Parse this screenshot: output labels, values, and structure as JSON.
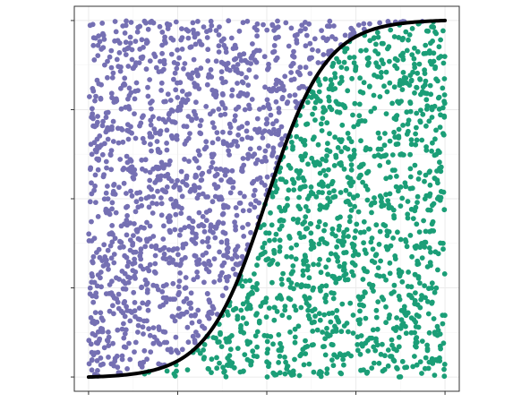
{
  "chart_data": {
    "type": "scatter",
    "title": "",
    "xlabel": "",
    "ylabel": "",
    "xlim": [
      -0.04,
      1.04
    ],
    "ylim": [
      -0.04,
      1.04
    ],
    "x_ticks": [
      0,
      0.25,
      0.5,
      0.75,
      1
    ],
    "y_ticks": [
      0,
      0.25,
      0.5,
      0.75,
      1
    ],
    "tick_labels_shown": false,
    "grid": true,
    "legend": "none",
    "curve": {
      "type": "logistic",
      "midpoint": 0.5,
      "steepness": 12,
      "color": "#000000"
    },
    "point_count": 2600,
    "series": [
      {
        "name": "",
        "region": "above-curve",
        "color": "#7570b3"
      },
      {
        "name": "",
        "region": "below-curve",
        "color": "#1b9e77"
      }
    ],
    "colors": {
      "panel_border": "#333333",
      "grid_major": "#ebebeb",
      "grid_minor": "#f5f5f5",
      "background": "#ffffff"
    }
  }
}
